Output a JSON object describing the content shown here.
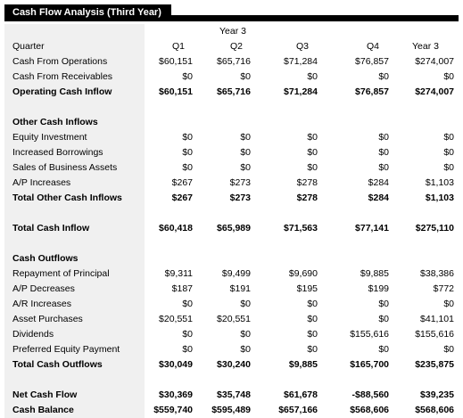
{
  "title": "Cash Flow Analysis (Third Year)",
  "year_label": "Year 3",
  "header": {
    "label": "Quarter",
    "cols": [
      "Q1",
      "Q2",
      "Q3",
      "Q4",
      "Year 3"
    ]
  },
  "rows": [
    {
      "label": "Cash From Operations",
      "vals": [
        "$60,151",
        "$65,716",
        "$71,284",
        "$76,857",
        "$274,007"
      ]
    },
    {
      "label": "Cash From Receivables",
      "vals": [
        "$0",
        "$0",
        "$0",
        "$0",
        "$0"
      ]
    },
    {
      "label": "Operating Cash Inflow",
      "vals": [
        "$60,151",
        "$65,716",
        "$71,284",
        "$76,857",
        "$274,007"
      ],
      "bold": true
    },
    {
      "spacer": true
    },
    {
      "label": "Other Cash Inflows",
      "vals": [],
      "bold": true
    },
    {
      "label": "Equity Investment",
      "vals": [
        "$0",
        "$0",
        "$0",
        "$0",
        "$0"
      ]
    },
    {
      "label": "Increased Borrowings",
      "vals": [
        "$0",
        "$0",
        "$0",
        "$0",
        "$0"
      ]
    },
    {
      "label": "Sales of Business Assets",
      "vals": [
        "$0",
        "$0",
        "$0",
        "$0",
        "$0"
      ]
    },
    {
      "label": "A/P Increases",
      "vals": [
        "$267",
        "$273",
        "$278",
        "$284",
        "$1,103"
      ]
    },
    {
      "label": "Total Other Cash Inflows",
      "vals": [
        "$267",
        "$273",
        "$278",
        "$284",
        "$1,103"
      ],
      "bold": true
    },
    {
      "spacer": true
    },
    {
      "label": "Total Cash Inflow",
      "vals": [
        "$60,418",
        "$65,989",
        "$71,563",
        "$77,141",
        "$275,110"
      ],
      "bold": true
    },
    {
      "spacer": true
    },
    {
      "label": "Cash Outflows",
      "vals": [],
      "bold": true
    },
    {
      "label": "Repayment of Principal",
      "vals": [
        "$9,311",
        "$9,499",
        "$9,690",
        "$9,885",
        "$38,386"
      ]
    },
    {
      "label": "A/P Decreases",
      "vals": [
        "$187",
        "$191",
        "$195",
        "$199",
        "$772"
      ]
    },
    {
      "label": "A/R Increases",
      "vals": [
        "$0",
        "$0",
        "$0",
        "$0",
        "$0"
      ]
    },
    {
      "label": "Asset Purchases",
      "vals": [
        "$20,551",
        "$20,551",
        "$0",
        "$0",
        "$41,101"
      ]
    },
    {
      "label": "Dividends",
      "vals": [
        "$0",
        "$0",
        "$0",
        "$155,616",
        "$155,616"
      ]
    },
    {
      "label": "Preferred Equity Payment",
      "vals": [
        "$0",
        "$0",
        "$0",
        "$0",
        "$0"
      ]
    },
    {
      "label": "Total Cash Outflows",
      "vals": [
        "$30,049",
        "$30,240",
        "$9,885",
        "$165,700",
        "$235,875"
      ],
      "bold": true
    },
    {
      "spacer": true
    },
    {
      "label": "Net Cash Flow",
      "vals": [
        "$30,369",
        "$35,748",
        "$61,678",
        "-$88,560",
        "$39,235"
      ],
      "bold": true
    },
    {
      "label": "Cash Balance",
      "vals": [
        "$559,740",
        "$595,489",
        "$657,166",
        "$568,606",
        "$568,606"
      ],
      "bold": true
    }
  ]
}
